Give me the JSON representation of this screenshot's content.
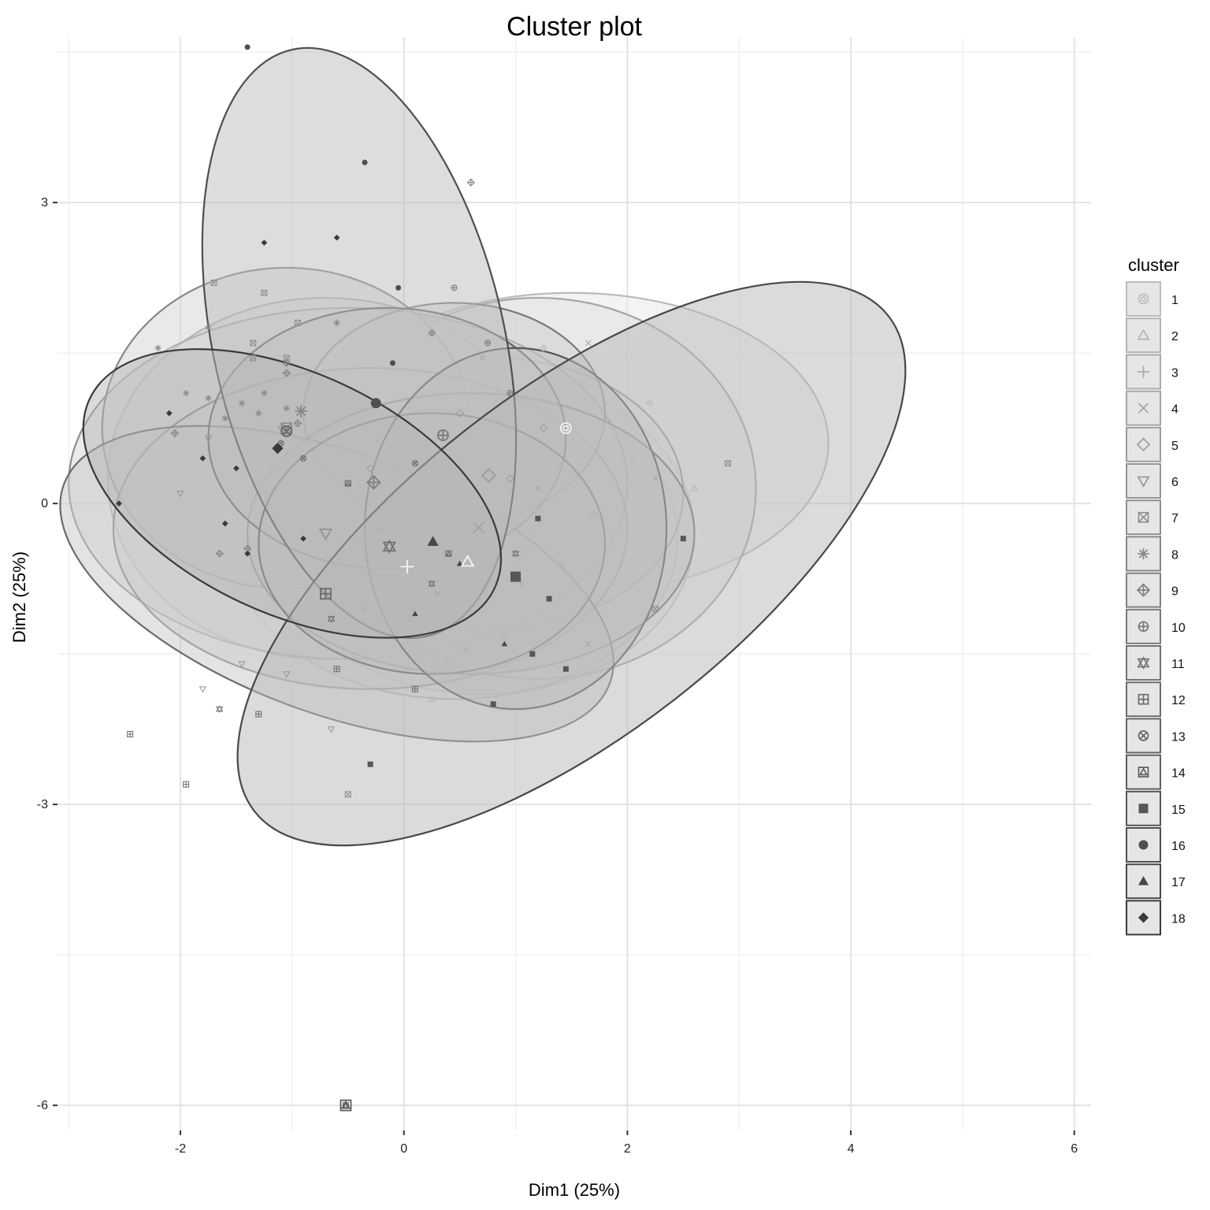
{
  "chart_data": {
    "type": "scatter",
    "title": "Cluster plot",
    "xlabel": "Dim1 (25%)",
    "ylabel": "Dim2 (25%)",
    "xlim": [
      -3.1,
      6.15
    ],
    "ylim": [
      -6.25,
      4.65
    ],
    "x_ticks": [
      -2,
      0,
      2,
      4,
      6
    ],
    "x_tick_labels": [
      "-2",
      "0",
      "2",
      "4",
      "6"
    ],
    "y_ticks": [
      -6,
      -3,
      0,
      3
    ],
    "y_tick_labels": [
      "-6",
      "-3",
      "0",
      "3"
    ],
    "grid": true,
    "legend": {
      "title": "cluster",
      "position": "right",
      "entries": [
        "1",
        "2",
        "3",
        "4",
        "5",
        "6",
        "7",
        "8",
        "9",
        "10",
        "11",
        "12",
        "13",
        "14",
        "15",
        "16",
        "17",
        "18"
      ]
    },
    "series": [
      {
        "name": "1",
        "symbol": "circle-dot",
        "color": "#bbbbbb",
        "ellipse": {
          "cx": 1.5,
          "cy": 0.6,
          "rx": 2.3,
          "ry": 1.5,
          "angle": 0
        },
        "centroid": [
          1.45,
          0.75
        ],
        "points": [
          [
            1.25,
            1.55
          ],
          [
            1.6,
            1.2
          ],
          [
            2.2,
            1.0
          ],
          [
            1.9,
            0.7
          ],
          [
            2.05,
            0.45
          ],
          [
            1.3,
            0.85
          ],
          [
            1.05,
            1.0
          ],
          [
            0.85,
            1.15
          ]
        ]
      },
      {
        "name": "2",
        "symbol": "triangle-open",
        "color": "#b3b3b3",
        "ellipse": {
          "cx": 0.7,
          "cy": -0.3,
          "rx": 1.9,
          "ry": 1.6,
          "angle": 0
        },
        "centroid": [
          0.57,
          -0.58
        ],
        "points": [
          [
            2.6,
            0.15
          ],
          [
            1.7,
            -0.1
          ],
          [
            0.9,
            -1.3
          ],
          [
            0.4,
            -1.6
          ],
          [
            0.25,
            -1.95
          ],
          [
            1.4,
            -0.6
          ],
          [
            0.05,
            -1.15
          ]
        ]
      },
      {
        "name": "3",
        "symbol": "plus",
        "color": "#ababab",
        "ellipse": {
          "cx": 0.45,
          "cy": -0.35,
          "rx": 2.0,
          "ry": 1.6,
          "angle": 0
        },
        "centroid": [
          0.03,
          -0.63
        ],
        "points": [
          [
            0.55,
            -1.45
          ],
          [
            -0.35,
            -1.05
          ],
          [
            1.05,
            -0.8
          ],
          [
            -0.2,
            -0.25
          ]
        ]
      },
      {
        "name": "4",
        "symbol": "x",
        "color": "#a4a4a4",
        "ellipse": {
          "cx": 1.2,
          "cy": 0.15,
          "rx": 1.95,
          "ry": 1.9,
          "angle": 0
        },
        "centroid": [
          0.67,
          -0.24
        ],
        "points": [
          [
            2.25,
            0.25
          ],
          [
            1.65,
            1.6
          ],
          [
            1.65,
            -1.4
          ],
          [
            0.7,
            1.45
          ],
          [
            1.2,
            0.15
          ],
          [
            0.3,
            -0.9
          ]
        ]
      },
      {
        "name": "5",
        "symbol": "diamond-open",
        "color": "#9c9c9c",
        "ellipse": {
          "cx": 0.8,
          "cy": 0.1,
          "rx": 1.7,
          "ry": 1.35,
          "angle": 0
        },
        "centroid": [
          0.76,
          0.28
        ],
        "points": [
          [
            1.25,
            0.75
          ],
          [
            0.5,
            0.9
          ],
          [
            -0.3,
            0.35
          ],
          [
            0.95,
            0.25
          ]
        ]
      },
      {
        "name": "6",
        "symbol": "triangle-down-open",
        "color": "#959595",
        "ellipse": {
          "cx": -0.7,
          "cy": 0.25,
          "rx": 1.95,
          "ry": 1.8,
          "angle": 0
        },
        "centroid": [
          -0.7,
          -0.3
        ],
        "points": [
          [
            -2.0,
            0.1
          ],
          [
            -1.75,
            0.65
          ],
          [
            -1.8,
            -1.85
          ],
          [
            -1.45,
            -1.6
          ],
          [
            -1.05,
            -1.7
          ],
          [
            -0.65,
            -2.25
          ],
          [
            -1.1,
            0.75
          ]
        ]
      },
      {
        "name": "7",
        "symbol": "square-x",
        "color": "#8e8e8e",
        "ellipse": {
          "cx": -0.5,
          "cy": 0.2,
          "rx": 2.5,
          "ry": 1.75,
          "angle": 0
        },
        "centroid": [
          -1.05,
          0.75
        ],
        "points": [
          [
            -1.7,
            2.2
          ],
          [
            -1.25,
            2.1
          ],
          [
            -0.95,
            1.8
          ],
          [
            -1.35,
            1.6
          ],
          [
            -1.35,
            1.45
          ],
          [
            -1.05,
            1.45
          ],
          [
            2.9,
            0.4
          ],
          [
            2.25,
            -1.05
          ],
          [
            -0.5,
            -2.9
          ]
        ]
      },
      {
        "name": "8",
        "symbol": "asterisk",
        "color": "#878787",
        "ellipse": {
          "cx": -1.05,
          "cy": 0.75,
          "rx": 1.65,
          "ry": 1.6,
          "angle": 0
        },
        "centroid": [
          -0.92,
          0.92
        ],
        "points": [
          [
            -2.2,
            1.55
          ],
          [
            -1.75,
            1.75
          ],
          [
            -0.6,
            1.8
          ],
          [
            -1.95,
            1.1
          ],
          [
            -1.75,
            1.05
          ],
          [
            -1.45,
            1.0
          ],
          [
            -1.25,
            1.1
          ],
          [
            -1.6,
            0.85
          ],
          [
            -1.3,
            0.9
          ],
          [
            -1.05,
            0.95
          ]
        ]
      },
      {
        "name": "9",
        "symbol": "diamond-plus",
        "color": "#808080",
        "ellipse": {
          "cx": -0.3,
          "cy": -0.25,
          "rx": 2.3,
          "ry": 1.6,
          "angle": 0
        },
        "centroid": [
          -0.27,
          0.21
        ],
        "points": [
          [
            0.6,
            3.2
          ],
          [
            -2.05,
            0.7
          ],
          [
            -1.05,
            1.4
          ],
          [
            -1.05,
            1.3
          ],
          [
            -0.95,
            0.8
          ],
          [
            -1.65,
            -0.5
          ],
          [
            -1.4,
            -0.45
          ]
        ]
      },
      {
        "name": "10",
        "symbol": "circle-plus",
        "color": "#797979",
        "ellipse": {
          "cx": 0.45,
          "cy": 0.9,
          "rx": 1.35,
          "ry": 1.1,
          "angle": 0
        },
        "centroid": [
          0.35,
          0.68
        ],
        "points": [
          [
            0.45,
            2.15
          ],
          [
            0.25,
            1.7
          ],
          [
            0.75,
            1.6
          ],
          [
            0.95,
            1.1
          ]
        ]
      },
      {
        "name": "11",
        "symbol": "star-of-david",
        "color": "#727272",
        "ellipse": {
          "cx": 0.6,
          "cy": -0.3,
          "rx": 2.0,
          "ry": 1.4,
          "angle": 0
        },
        "centroid": [
          -0.13,
          -0.43
        ],
        "points": [
          [
            -1.65,
            -2.05
          ],
          [
            -0.65,
            -1.15
          ],
          [
            0.25,
            -0.8
          ],
          [
            1.0,
            -0.5
          ]
        ]
      },
      {
        "name": "12",
        "symbol": "square-plus",
        "color": "#6b6b6b",
        "ellipse": {
          "cx": -0.6,
          "cy": -0.8,
          "rx": 2.6,
          "ry": 1.3,
          "angle": 20
        },
        "centroid": [
          -0.7,
          -0.9
        ],
        "points": [
          [
            -2.45,
            -2.3
          ],
          [
            -1.95,
            -2.8
          ],
          [
            -1.3,
            -2.1
          ],
          [
            -0.6,
            -1.65
          ],
          [
            0.1,
            -1.85
          ]
        ]
      },
      {
        "name": "13",
        "symbol": "circle-x",
        "color": "#646464",
        "ellipse": {
          "cx": -0.15,
          "cy": 0.65,
          "rx": 1.6,
          "ry": 1.3,
          "angle": 0
        },
        "centroid": [
          -1.05,
          0.72
        ],
        "points": [
          [
            -1.1,
            0.6
          ],
          [
            -0.9,
            0.45
          ],
          [
            0.1,
            0.4
          ]
        ]
      },
      {
        "name": "14",
        "symbol": "square-triangle",
        "color": "#5d5d5d",
        "ellipse": {
          "cx": 0.25,
          "cy": -0.4,
          "rx": 1.55,
          "ry": 1.3,
          "angle": 0
        },
        "centroid": [
          -0.52,
          -6.0
        ],
        "points": [
          [
            -0.52,
            -6.0
          ],
          [
            -0.5,
            0.2
          ],
          [
            0.4,
            -0.5
          ]
        ]
      },
      {
        "name": "15",
        "symbol": "square",
        "color": "#565656",
        "ellipse": {
          "cx": 1.0,
          "cy": -0.25,
          "rx": 1.35,
          "ry": 1.8,
          "angle": 0
        },
        "centroid": [
          1.0,
          -0.73
        ],
        "points": [
          [
            2.5,
            -0.35
          ],
          [
            1.3,
            -0.95
          ],
          [
            1.15,
            -1.5
          ],
          [
            1.45,
            -1.65
          ],
          [
            0.8,
            -2.0
          ],
          [
            -0.3,
            -2.6
          ],
          [
            1.2,
            -0.15
          ]
        ]
      },
      {
        "name": "16",
        "symbol": "circle",
        "color": "#4f4f4f",
        "ellipse": {
          "cx": -0.4,
          "cy": 1.6,
          "rx": 1.3,
          "ry": 3.0,
          "angle": -13
        },
        "centroid": [
          -0.25,
          1.0
        ],
        "points": [
          [
            -1.4,
            4.55
          ],
          [
            -0.35,
            3.4
          ],
          [
            -0.05,
            2.15
          ],
          [
            -0.1,
            1.4
          ]
        ]
      },
      {
        "name": "17",
        "symbol": "triangle",
        "color": "#484848",
        "ellipse": {
          "cx": 1.5,
          "cy": -0.6,
          "rx": 3.6,
          "ry": 1.7,
          "angle": -38
        },
        "centroid": [
          0.26,
          -0.38
        ],
        "points": [
          [
            0.5,
            -0.6
          ],
          [
            0.1,
            -1.1
          ],
          [
            0.9,
            -1.4
          ]
        ]
      },
      {
        "name": "18",
        "symbol": "diamond",
        "color": "#3a3a3a",
        "ellipse": {
          "cx": -1.0,
          "cy": 0.1,
          "rx": 2.0,
          "ry": 1.2,
          "angle": 25
        },
        "centroid": [
          -1.13,
          0.55
        ],
        "points": [
          [
            -1.25,
            2.6
          ],
          [
            -0.6,
            2.65
          ],
          [
            -2.55,
            0.0
          ],
          [
            -2.1,
            0.9
          ],
          [
            -1.8,
            0.45
          ],
          [
            -1.5,
            0.35
          ],
          [
            -1.6,
            -0.2
          ],
          [
            -1.4,
            -0.5
          ],
          [
            -0.9,
            -0.35
          ]
        ]
      }
    ]
  }
}
